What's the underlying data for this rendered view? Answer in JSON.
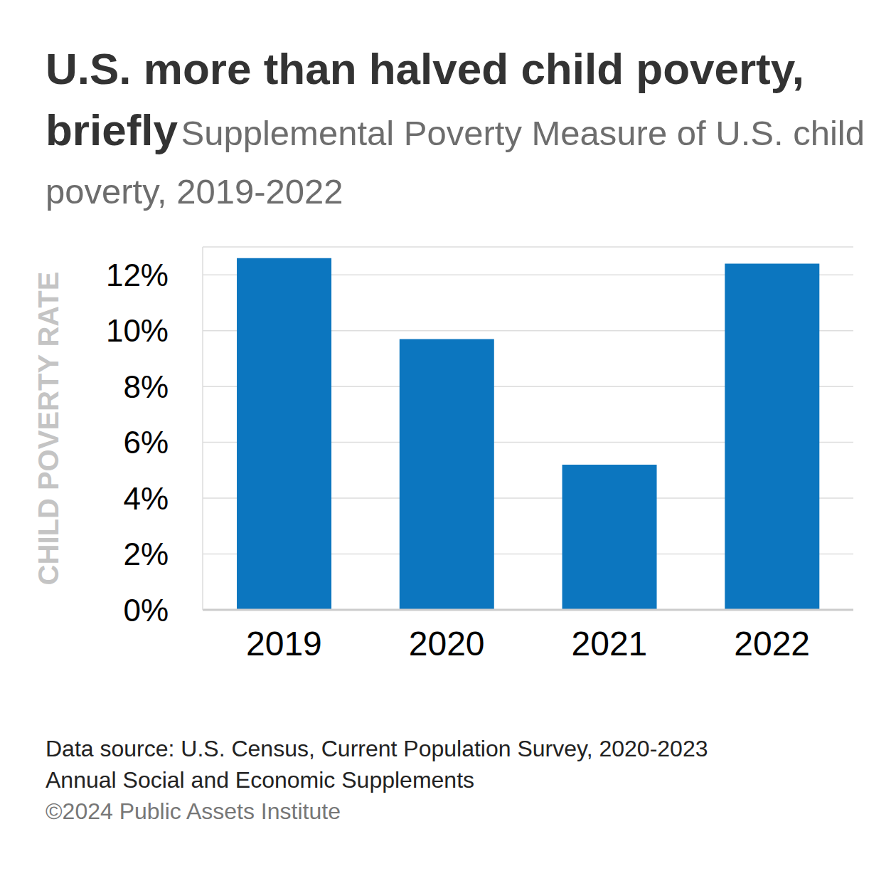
{
  "chart_data": {
    "type": "bar",
    "title": "U.S. more than halved child poverty, briefly",
    "subtitle": "Supplemental Poverty Measure of U.S. child poverty, 2019-2022",
    "y_label": "CHILD POVERTY RATE",
    "categories": [
      "2019",
      "2020",
      "2021",
      "2022"
    ],
    "values": [
      12.6,
      9.7,
      5.2,
      12.4
    ],
    "color": "#0c76bf",
    "ylim": [
      0,
      13
    ],
    "yticks": [
      {
        "value": 0,
        "label": "0%"
      },
      {
        "value": 2,
        "label": "2%"
      },
      {
        "value": 4,
        "label": "4%"
      },
      {
        "value": 6,
        "label": "6%"
      },
      {
        "value": 8,
        "label": "8%"
      },
      {
        "value": 10,
        "label": "10%"
      },
      {
        "value": 12,
        "label": "12%"
      }
    ],
    "grid": true,
    "source": [
      "Data source: U.S. Census, Current Population Survey, 2020-2023",
      "Annual Social and Economic Supplements"
    ],
    "credit": "©2024 Public Assets Institute"
  }
}
